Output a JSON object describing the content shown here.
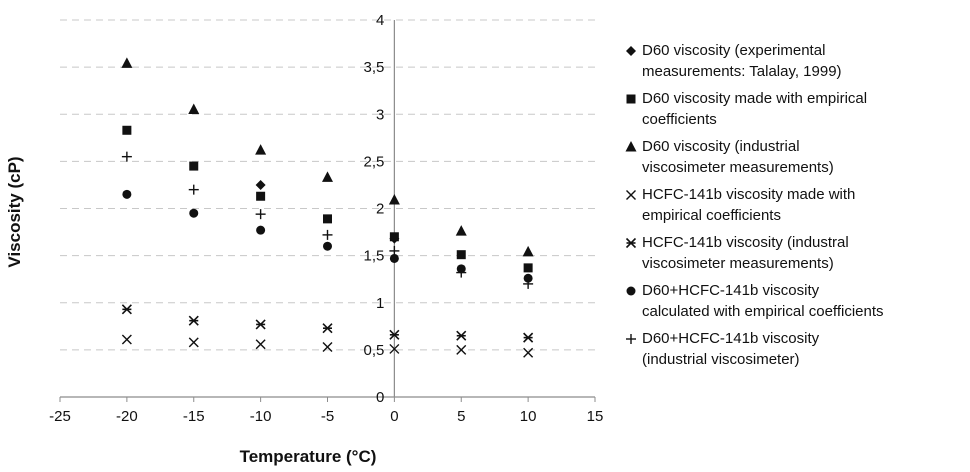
{
  "chart_data": {
    "type": "scatter",
    "xlabel": "Temperature (°C)",
    "ylabel": "Viscosity (cP)",
    "xlim": [
      -25,
      15
    ],
    "ylim": [
      0,
      4
    ],
    "x_ticks": [
      "-25",
      "-20",
      "-15",
      "-10",
      "-5",
      "0",
      "5",
      "10",
      "15"
    ],
    "y_ticks": [
      "0",
      "0,5",
      "1",
      "1,5",
      "2",
      "2,5",
      "3",
      "3,5",
      "4"
    ],
    "grid": "horizontal dashed",
    "legend_position": "right",
    "series": [
      {
        "name": "D60 viscosity (experimental measurements: Talalay, 1999)",
        "marker": "diamond",
        "x": [
          -10,
          0
        ],
        "y": [
          2.25,
          1.68
        ]
      },
      {
        "name": "D60 viscosity made with empirical coefficients",
        "marker": "square",
        "x": [
          -20,
          -15,
          -10,
          -5,
          0,
          5,
          10
        ],
        "y": [
          2.83,
          2.45,
          2.13,
          1.89,
          1.7,
          1.51,
          1.37
        ]
      },
      {
        "name": "D60 viscosity (industrial viscosimeter measurements)",
        "marker": "triangle",
        "x": [
          -20,
          -15,
          -10,
          -5,
          0,
          5,
          10
        ],
        "y": [
          3.54,
          3.05,
          2.62,
          2.33,
          2.09,
          1.76,
          1.54
        ]
      },
      {
        "name": "HCFC-141b viscosity made with empirical coefficients",
        "marker": "x",
        "x": [
          -20,
          -15,
          -10,
          -5,
          0,
          5,
          10
        ],
        "y": [
          0.61,
          0.58,
          0.56,
          0.53,
          0.51,
          0.5,
          0.47
        ]
      },
      {
        "name": "HCFC-141b viscosity (industral viscosimeter measurements)",
        "marker": "asterisk",
        "x": [
          -20,
          -15,
          -10,
          -5,
          0,
          5,
          10
        ],
        "y": [
          0.93,
          0.81,
          0.77,
          0.73,
          0.66,
          0.65,
          0.63
        ]
      },
      {
        "name": "D60+HCFC-141b viscosity calculated with empirical coefficients",
        "marker": "circle",
        "x": [
          -20,
          -15,
          -10,
          -5,
          0,
          5,
          10
        ],
        "y": [
          2.15,
          1.95,
          1.77,
          1.6,
          1.47,
          1.36,
          1.26
        ]
      },
      {
        "name": "D60+HCFC-141b viscosity (industrial viscosimeter)",
        "marker": "plus",
        "x": [
          -20,
          -15,
          -10,
          -5,
          0,
          5,
          10
        ],
        "y": [
          2.55,
          2.2,
          1.94,
          1.72,
          1.55,
          1.32,
          1.2
        ]
      }
    ]
  },
  "legend": {
    "items": [
      {
        "marker": "diamond",
        "line1": "D60 viscosity (experimental",
        "line2": "measurements: Talalay, 1999)"
      },
      {
        "marker": "square",
        "line1": "D60 viscosity made with empirical",
        "line2": "coefficients"
      },
      {
        "marker": "triangle",
        "line1": "D60 viscosity (industrial",
        "line2": "viscosimeter measurements)"
      },
      {
        "marker": "x",
        "line1": "HCFC-141b viscosity made with",
        "line2": "empirical coefficients"
      },
      {
        "marker": "asterisk",
        "line1": "HCFC-141b viscosity (industral",
        "line2": "viscosimeter measurements)"
      },
      {
        "marker": "circle",
        "line1": "D60+HCFC-141b viscosity",
        "line2": "calculated with empirical coefficients"
      },
      {
        "marker": "plus",
        "line1": "D60+HCFC-141b viscosity",
        "line2": "(industrial viscosimeter)"
      }
    ]
  },
  "colors": {
    "marker": "#111111",
    "grid": "#c8c8c8",
    "axis": "#8c8c8c"
  }
}
